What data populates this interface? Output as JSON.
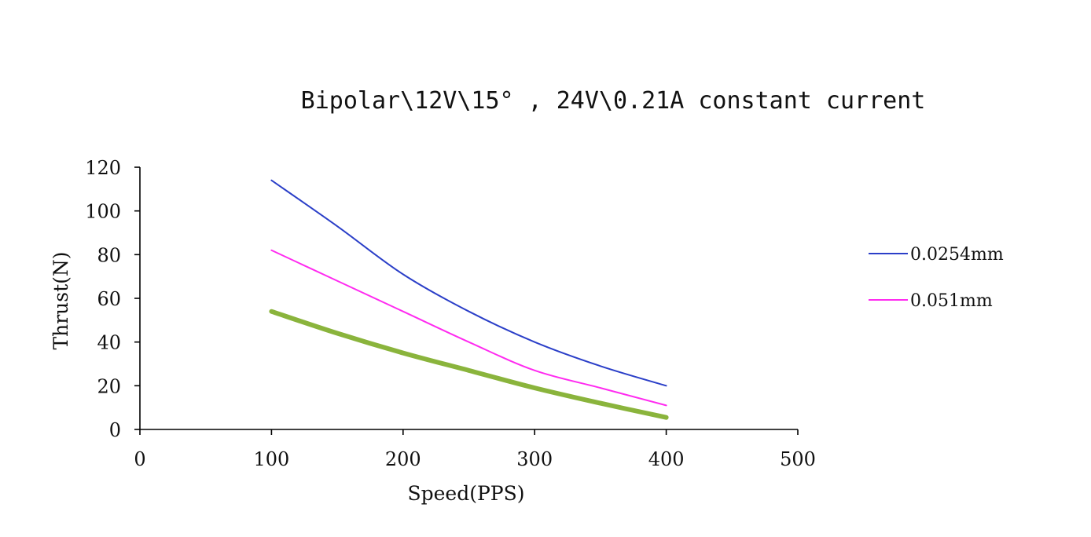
{
  "chart_data": {
    "type": "line",
    "title": "Bipolar\\12V\\15° , 24V\\0.21A constant current",
    "xlabel": "Speed(PPS)",
    "ylabel": "Thrust(N)",
    "xlim": [
      0,
      500
    ],
    "ylim": [
      0,
      120
    ],
    "xticks": [
      0,
      100,
      200,
      300,
      400,
      500
    ],
    "yticks": [
      0,
      20,
      40,
      60,
      80,
      100,
      120
    ],
    "grid": false,
    "legend": "right",
    "series": [
      {
        "name": "0.0254mm",
        "color": "#2b3fc8",
        "x": [
          100,
          150,
          200,
          250,
          300,
          350,
          400
        ],
        "y": [
          114,
          93,
          71,
          54,
          40,
          29,
          20
        ]
      },
      {
        "name": "0.051mm",
        "color": "#ff2bf0",
        "x": [
          100,
          150,
          200,
          250,
          300,
          350,
          400
        ],
        "y": [
          82,
          68,
          54,
          40,
          27,
          19,
          11
        ]
      },
      {
        "name": "",
        "color": "#8ab43c",
        "x": [
          100,
          150,
          200,
          250,
          300,
          350,
          400
        ],
        "y": [
          54,
          44,
          35,
          27,
          19,
          12,
          5.5
        ]
      }
    ]
  }
}
